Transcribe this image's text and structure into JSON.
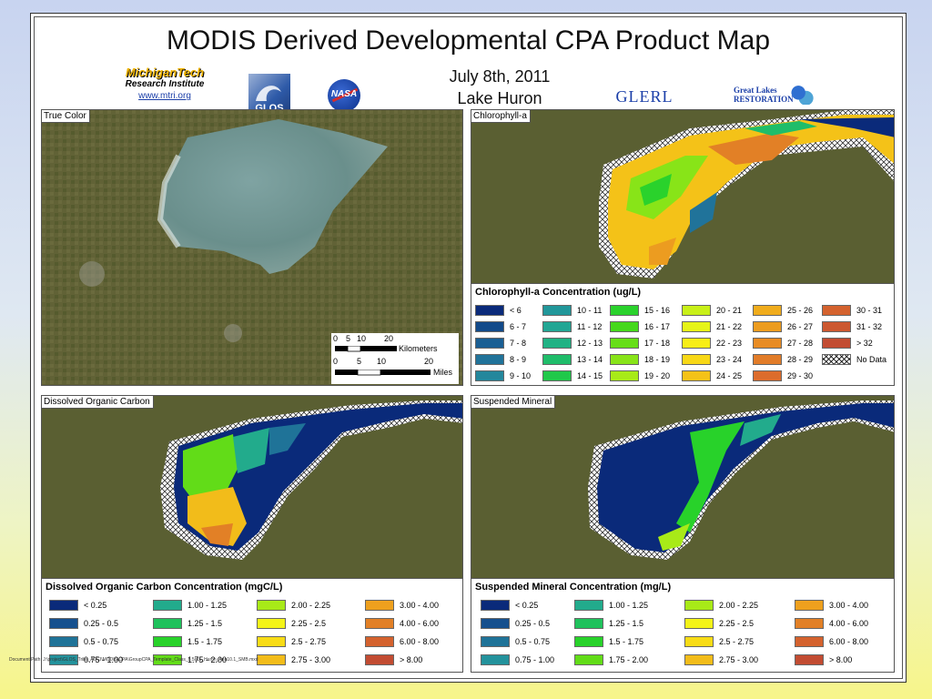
{
  "title": "MODIS Derived Developmental CPA Product Map",
  "date": "July 8th, 2011",
  "region": "Lake Huron",
  "logos": {
    "mtu_line1": "MichiganTech",
    "mtu_line2": "Research Institute",
    "mtu_url": "www.mtri.org",
    "glos": "GLOS",
    "nasa": "NASA",
    "glerl": "GLERL",
    "glrest": "Great Lakes RESTORATION"
  },
  "panels": {
    "true_color": {
      "label": "True Color"
    },
    "chlorophyll": {
      "label": "Chlorophyll-a",
      "legend_title": "Chlorophyll-a Concentration (ug/L)",
      "classes": [
        {
          "label": "< 6",
          "color": "#0a2a7a"
        },
        {
          "label": "6 - 7",
          "color": "#124a8a"
        },
        {
          "label": "7 - 8",
          "color": "#1a5f94"
        },
        {
          "label": "8 - 9",
          "color": "#20739a"
        },
        {
          "label": "9 - 10",
          "color": "#23879c"
        },
        {
          "label": "10 - 11",
          "color": "#21979a"
        },
        {
          "label": "11 - 12",
          "color": "#22a694"
        },
        {
          "label": "12 - 13",
          "color": "#20b284"
        },
        {
          "label": "13 - 14",
          "color": "#1fbd6a"
        },
        {
          "label": "14 - 15",
          "color": "#20c84a"
        },
        {
          "label": "15 - 16",
          "color": "#2ad22c"
        },
        {
          "label": "16 - 17",
          "color": "#45d81c"
        },
        {
          "label": "17 - 18",
          "color": "#66de18"
        },
        {
          "label": "18 - 19",
          "color": "#88e418"
        },
        {
          "label": "19 - 20",
          "color": "#a8ea18"
        },
        {
          "label": "20 - 21",
          "color": "#c8f018"
        },
        {
          "label": "21 - 22",
          "color": "#e6f418"
        },
        {
          "label": "22 - 23",
          "color": "#f8ee16"
        },
        {
          "label": "23 - 24",
          "color": "#f8d816"
        },
        {
          "label": "24 - 25",
          "color": "#f4c218"
        },
        {
          "label": "25 - 26",
          "color": "#f0ac1c"
        },
        {
          "label": "26 - 27",
          "color": "#ec9c20"
        },
        {
          "label": "27 - 28",
          "color": "#e88c24"
        },
        {
          "label": "28 - 29",
          "color": "#e27c28"
        },
        {
          "label": "29 - 30",
          "color": "#dc6c2c"
        },
        {
          "label": "30 - 31",
          "color": "#d4622e"
        },
        {
          "label": "31 - 32",
          "color": "#cc5830"
        },
        {
          "label": "> 32",
          "color": "#c24c32"
        },
        {
          "label": "No Data",
          "color": "hatch"
        }
      ]
    },
    "doc": {
      "label": "Dissolved Organic Carbon",
      "legend_title": "Dissolved Organic Carbon Concentration (mgC/L)",
      "classes": [
        {
          "label": "< 0.25",
          "color": "#0a2a7a"
        },
        {
          "label": "0.25 - 0.5",
          "color": "#16508e"
        },
        {
          "label": "0.5 - 0.75",
          "color": "#1f7398"
        },
        {
          "label": "0.75 - 1.00",
          "color": "#23929c"
        },
        {
          "label": "1.00 - 1.25",
          "color": "#22ab8c"
        },
        {
          "label": "1.25 - 1.5",
          "color": "#1fc25c"
        },
        {
          "label": "1.5 - 1.75",
          "color": "#28d22a"
        },
        {
          "label": "1.75 - 2.00",
          "color": "#62dc18"
        },
        {
          "label": "2.00 - 2.25",
          "color": "#a8ea18"
        },
        {
          "label": "2.25 - 2.5",
          "color": "#f4f418"
        },
        {
          "label": "2.5 - 2.75",
          "color": "#f8dc16"
        },
        {
          "label": "2.75 - 3.00",
          "color": "#f2bc1a"
        },
        {
          "label": "3.00 - 4.00",
          "color": "#eea01e"
        },
        {
          "label": "4.00 - 6.00",
          "color": "#e28026"
        },
        {
          "label": "6.00 - 8.00",
          "color": "#d4622e"
        },
        {
          "label": "> 8.00",
          "color": "#c24c32"
        }
      ]
    },
    "minerals": {
      "label": "Suspended Mineral",
      "legend_title": "Suspended Mineral Concentration (mg/L)",
      "classes": [
        {
          "label": "< 0.25",
          "color": "#0a2a7a"
        },
        {
          "label": "0.25 - 0.5",
          "color": "#16508e"
        },
        {
          "label": "0.5 - 0.75",
          "color": "#1f7398"
        },
        {
          "label": "0.75 - 1.00",
          "color": "#23929c"
        },
        {
          "label": "1.00 - 1.25",
          "color": "#22ab8c"
        },
        {
          "label": "1.25 - 1.5",
          "color": "#1fc25c"
        },
        {
          "label": "1.5 - 1.75",
          "color": "#28d22a"
        },
        {
          "label": "1.75 - 2.00",
          "color": "#62dc18"
        },
        {
          "label": "2.00 - 2.25",
          "color": "#a8ea18"
        },
        {
          "label": "2.25 - 2.5",
          "color": "#f4f418"
        },
        {
          "label": "2.5 - 2.75",
          "color": "#f8dc16"
        },
        {
          "label": "2.75 - 3.00",
          "color": "#f2bc1a"
        },
        {
          "label": "3.00 - 4.00",
          "color": "#eea01e"
        },
        {
          "label": "4.00 - 6.00",
          "color": "#e28026"
        },
        {
          "label": "6.00 - 8.00",
          "color": "#d4622e"
        },
        {
          "label": "> 8.00",
          "color": "#c24c32"
        }
      ]
    }
  },
  "scale": {
    "km_ticks": [
      "0",
      "5",
      "10",
      "20"
    ],
    "km_unit": "Kilometers",
    "mi_ticks": [
      "0",
      "5",
      "10",
      "20"
    ],
    "mi_unit": "Miles"
  },
  "document_path": "Document Path: J:\\project\\GLOS_Tribs_ACCI\\MODIS\\CPA\\GroupCPA_Template_Class_8.5x11_Huron_Ann10.1_SMB.mxd"
}
